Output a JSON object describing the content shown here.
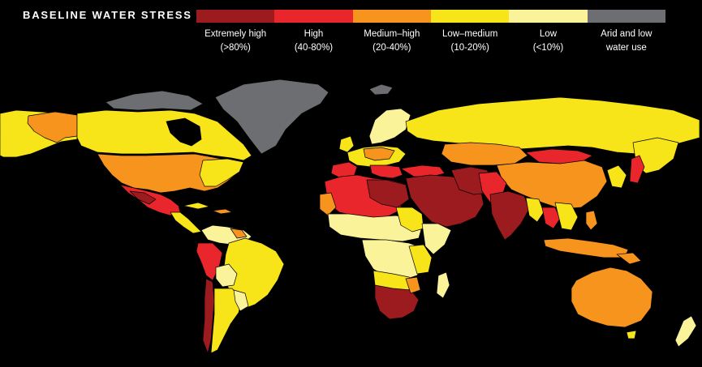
{
  "title": "BASELINE WATER STRESS",
  "legend": [
    {
      "line1": "Extremely high",
      "line2": "(>80%)",
      "color": "#9b1b1e"
    },
    {
      "line1": "High",
      "line2": "(40-80%)",
      "color": "#e8262b"
    },
    {
      "line1": "Medium–high",
      "line2": "(20-40%)",
      "color": "#f7941e"
    },
    {
      "line1": "Low–medium",
      "line2": "(10-20%)",
      "color": "#f7e51a"
    },
    {
      "line1": "Low",
      "line2": "(<10%)",
      "color": "#faf39a"
    },
    {
      "line1": "Arid and low",
      "line2": "water use",
      "color": "#6d6e71"
    }
  ]
}
